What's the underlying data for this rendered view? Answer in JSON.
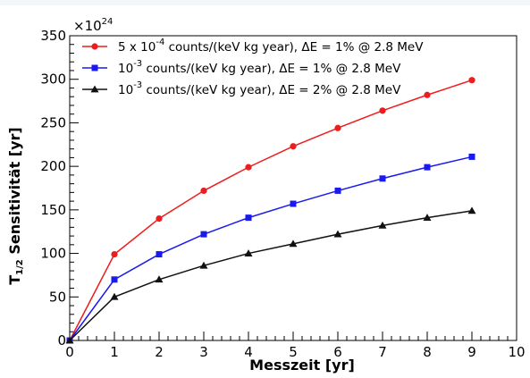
{
  "chart_data": {
    "type": "line",
    "x": [
      0,
      1,
      2,
      3,
      4,
      5,
      6,
      7,
      8,
      9
    ],
    "xlabel": "Messzeit [yr]",
    "ylabel": {
      "main": "T",
      "subscript": "1/2",
      "rest": " Sensitivität [yr]"
    },
    "y_multiplier": {
      "base": "×10",
      "exponent": "24"
    },
    "xlim": [
      0,
      10
    ],
    "ylim": [
      0,
      350
    ],
    "xticks": [
      0,
      1,
      2,
      3,
      4,
      5,
      6,
      7,
      8,
      9,
      10
    ],
    "yticks": [
      0,
      50,
      100,
      150,
      200,
      250,
      300,
      350
    ],
    "grid": false,
    "legend_position": "top-left",
    "series": [
      {
        "name": "5 x 10^-4 counts/(keV kg year), ΔE = 1% @ 2.8 MeV",
        "legend": {
          "pre": "5 x 10",
          "sup": "-4",
          "post": " counts/(keV kg year),  ΔE = 1% @ 2.8 MeV"
        },
        "color": "#ee1c1c",
        "marker": "circle",
        "values": [
          0,
          99,
          140,
          172,
          199,
          223,
          244,
          264,
          282,
          299
        ]
      },
      {
        "name": "10^-3 counts/(keV kg year), ΔE = 1% @ 2.8 MeV",
        "legend": {
          "pre": "10",
          "sup": "-3",
          "post": " counts/(keV kg year),  ΔE = 1% @ 2.8 MeV"
        },
        "color": "#1a1aee",
        "marker": "square",
        "values": [
          0,
          70,
          99,
          122,
          141,
          157,
          172,
          186,
          199,
          211
        ]
      },
      {
        "name": "10^-3 counts/(keV kg year), ΔE = 2% @ 2.8 MeV",
        "legend": {
          "pre": "10",
          "sup": "-3",
          "post": " counts/(keV kg year),  ΔE = 2% @ 2.8 MeV"
        },
        "color": "#111111",
        "marker": "triangle",
        "values": [
          0,
          50,
          70,
          86,
          100,
          111,
          122,
          132,
          141,
          149
        ]
      }
    ]
  }
}
